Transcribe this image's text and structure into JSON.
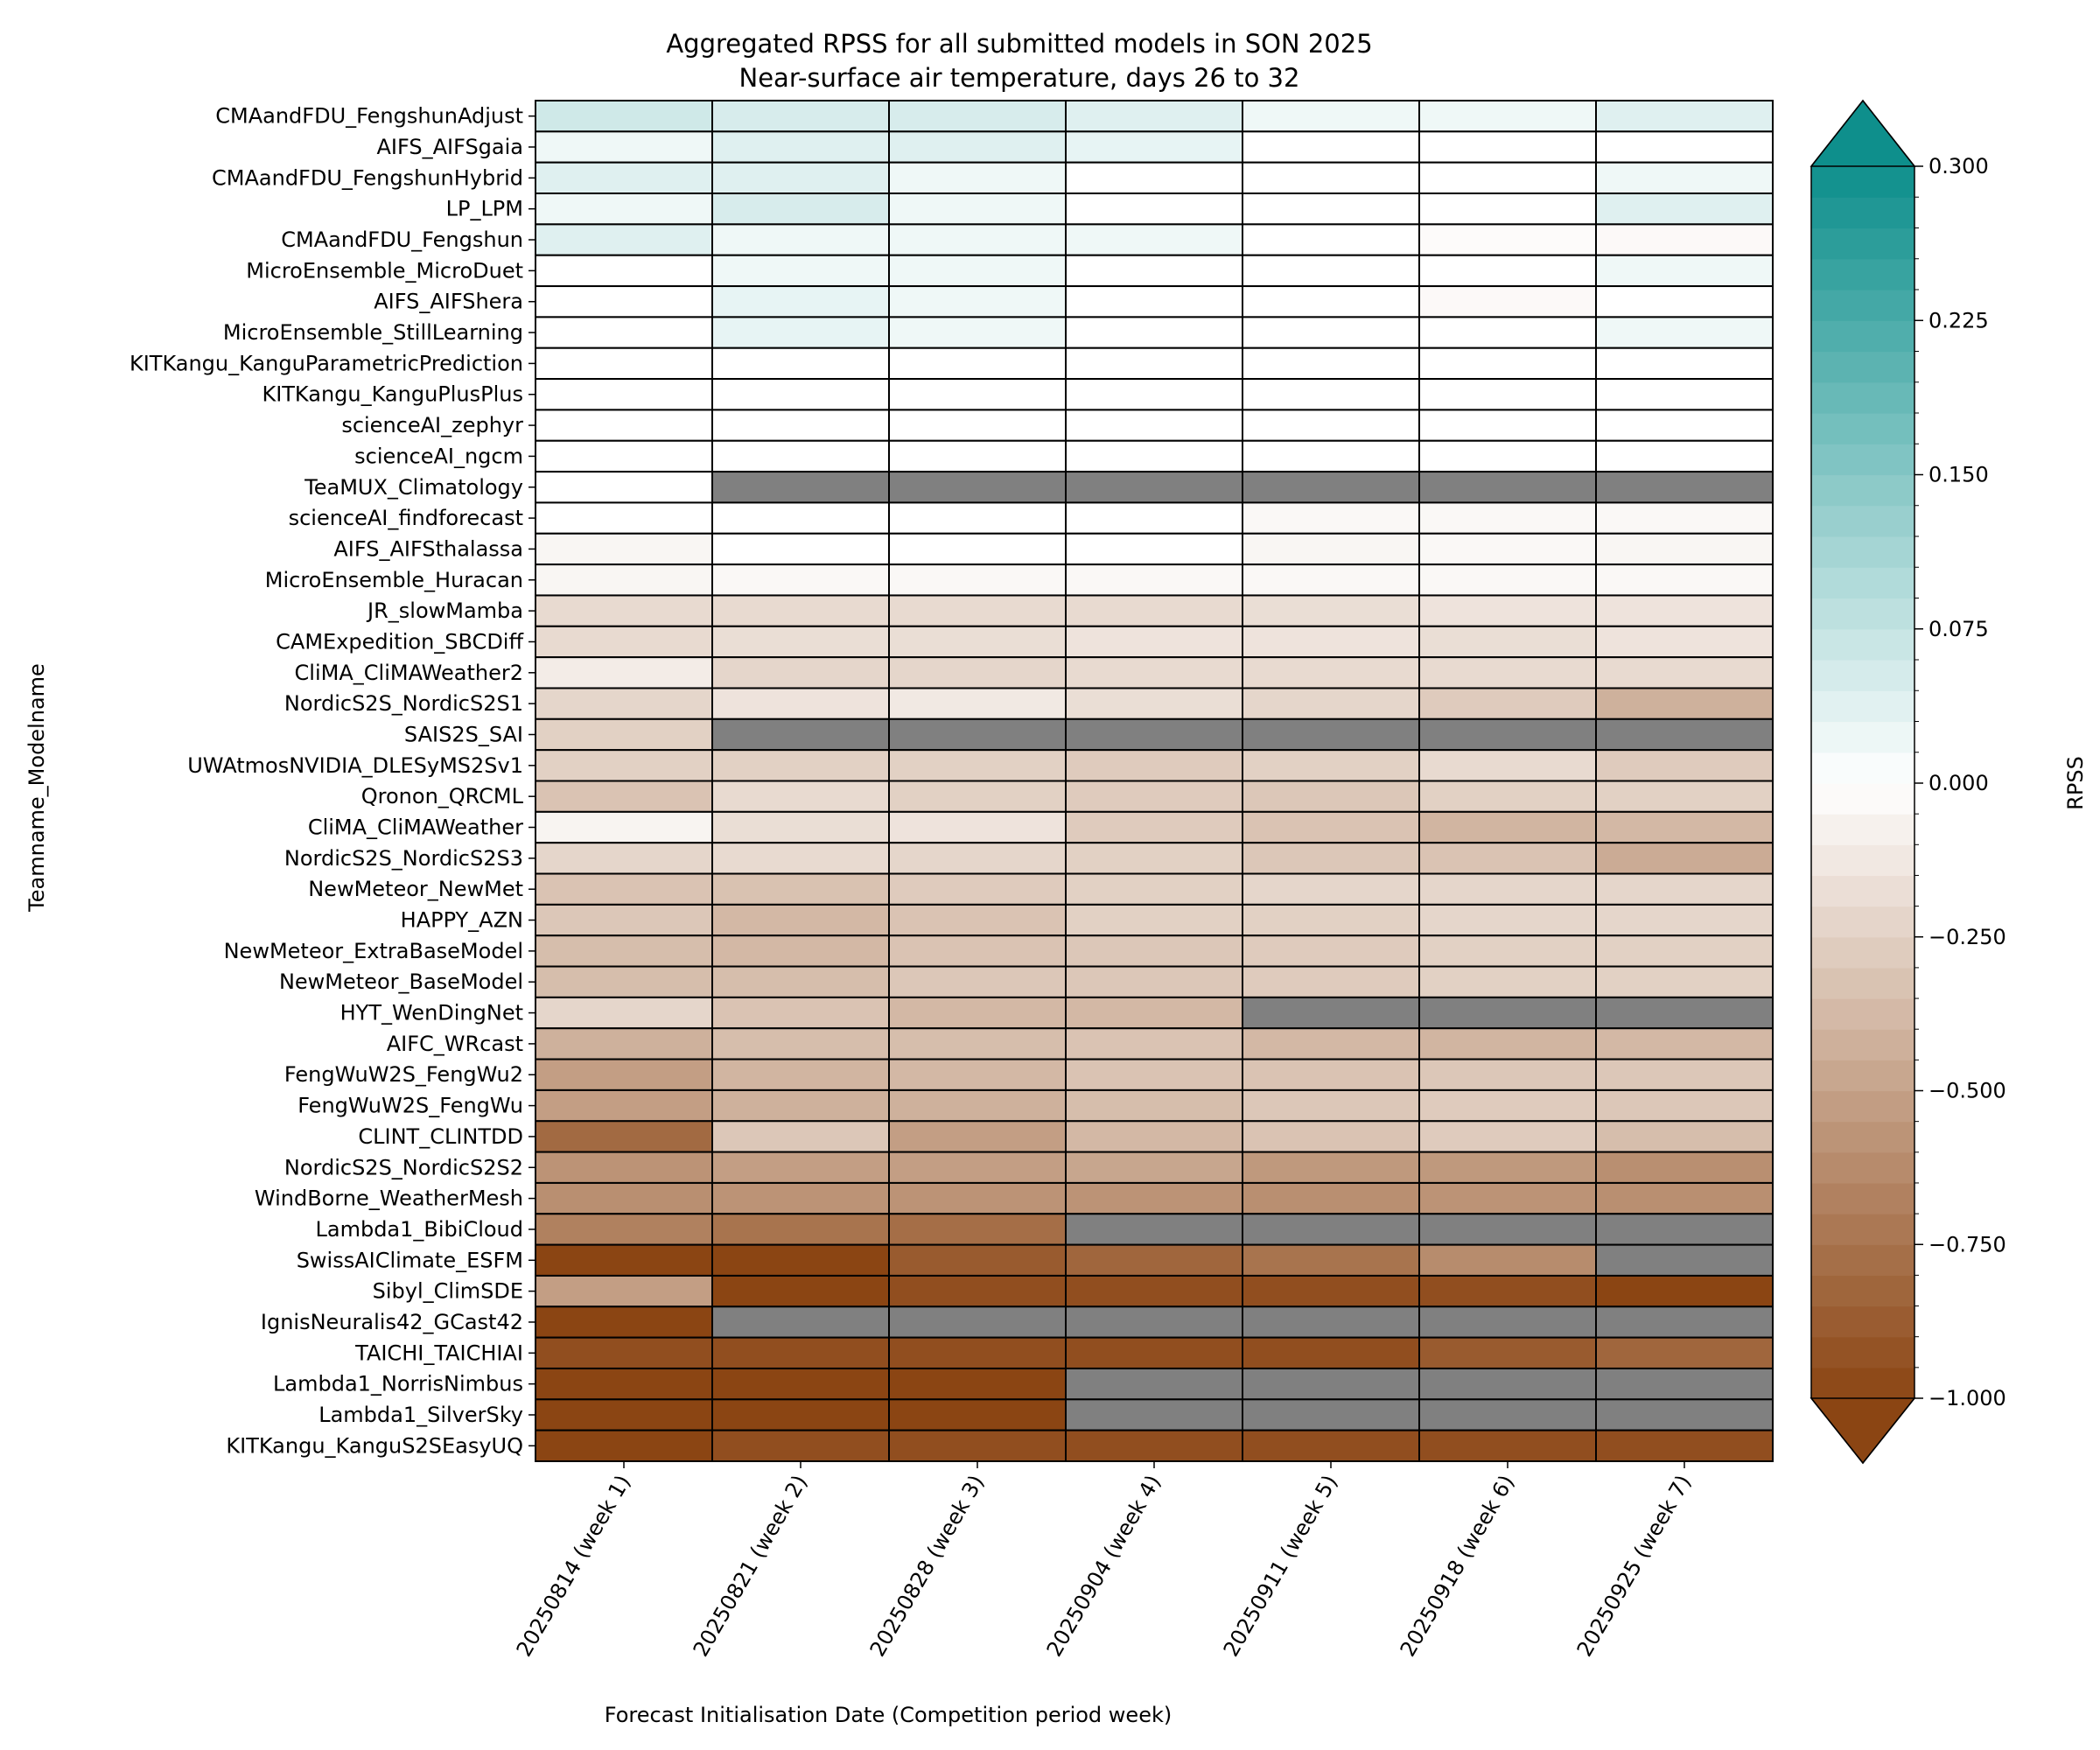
{
  "chart_data": {
    "type": "heatmap",
    "title": "Aggregated RPSS for all submitted models in SON 2025",
    "subtitle": "Near-surface air temperature, days 26 to 32",
    "xlabel": "Forecast Initialisation Date (Competition period week)",
    "ylabel": "Teamname_Modelname",
    "colorbar_label": "RPSS",
    "colorbar_ticks": [
      "0.300",
      "0.225",
      "0.150",
      "0.075",
      "0.000",
      "−0.250",
      "−0.500",
      "−0.750",
      "−1.000"
    ],
    "colorbar_tick_values": [
      0.3,
      0.225,
      0.15,
      0.075,
      0.0,
      -0.25,
      -0.5,
      -0.75,
      -1.0
    ],
    "vmin": -1.0,
    "vmax": 0.3,
    "colors": {
      "positive": "#0e8f8c",
      "zero": "#ffffff",
      "negative": "#8b4513",
      "missing": "#808080"
    },
    "categories": [
      "20250814 (week 1)",
      "20250821 (week 2)",
      "20250828 (week 3)",
      "20250904 (week 4)",
      "20250911 (week 5)",
      "20250918 (week 6)",
      "20250925 (week 7)"
    ],
    "rows": [
      {
        "name": "CMAandFDU_FengshunAdjust",
        "values": [
          0.06,
          0.05,
          0.05,
          0.04,
          0.02,
          0.02,
          0.04
        ]
      },
      {
        "name": "AIFS_AIFSgaia",
        "values": [
          0.02,
          0.04,
          0.04,
          0.03,
          0.0,
          0.0,
          0.0
        ]
      },
      {
        "name": "CMAandFDU_FengshunHybrid",
        "values": [
          0.04,
          0.04,
          0.02,
          0.0,
          0.0,
          0.0,
          0.02
        ]
      },
      {
        "name": "LP_LPM",
        "values": [
          0.02,
          0.05,
          0.02,
          0.0,
          0.0,
          0.0,
          0.04
        ]
      },
      {
        "name": "CMAandFDU_Fengshun",
        "values": [
          0.04,
          0.02,
          0.02,
          0.02,
          0.0,
          -0.02,
          -0.03
        ]
      },
      {
        "name": "MicroEnsemble_MicroDuet",
        "values": [
          0.0,
          0.02,
          0.02,
          0.0,
          0.0,
          0.0,
          0.02
        ]
      },
      {
        "name": "AIFS_AIFShera",
        "values": [
          0.0,
          0.03,
          0.02,
          0.0,
          0.0,
          -0.03,
          0.0
        ]
      },
      {
        "name": "MicroEnsemble_StillLearning",
        "values": [
          0.0,
          0.03,
          0.02,
          0.0,
          0.0,
          0.0,
          0.02
        ]
      },
      {
        "name": "KITKangu_KanguParametricPrediction",
        "values": [
          0.0,
          0.0,
          0.0,
          0.0,
          0.0,
          0.0,
          0.0
        ]
      },
      {
        "name": "KITKangu_KanguPlusPlus",
        "values": [
          0.0,
          0.0,
          0.0,
          0.0,
          0.0,
          0.0,
          0.0
        ]
      },
      {
        "name": "scienceAI_zephyr",
        "values": [
          0.0,
          0.0,
          0.0,
          0.0,
          0.0,
          0.0,
          0.0
        ]
      },
      {
        "name": "scienceAI_ngcm",
        "values": [
          0.0,
          0.0,
          0.0,
          0.0,
          0.0,
          0.0,
          0.0
        ]
      },
      {
        "name": "TeaMUX_Climatology",
        "values": [
          0.0,
          null,
          null,
          null,
          null,
          null,
          null
        ]
      },
      {
        "name": "scienceAI_findforecast",
        "values": [
          0.0,
          0.0,
          0.0,
          0.0,
          -0.04,
          -0.04,
          -0.04
        ]
      },
      {
        "name": "AIFS_AIFSthalassa",
        "values": [
          -0.05,
          0.0,
          0.0,
          0.0,
          -0.05,
          -0.04,
          -0.05
        ]
      },
      {
        "name": "MicroEnsemble_Huracan",
        "values": [
          -0.05,
          -0.04,
          -0.04,
          -0.04,
          -0.04,
          -0.04,
          -0.04
        ]
      },
      {
        "name": "JR_slowMamba",
        "values": [
          -0.2,
          -0.2,
          -0.2,
          -0.2,
          -0.18,
          -0.15,
          -0.15
        ]
      },
      {
        "name": "CAMExpedition_SBCDiff",
        "values": [
          -0.2,
          -0.18,
          -0.18,
          -0.15,
          -0.15,
          -0.18,
          -0.15
        ]
      },
      {
        "name": "CliMA_CliMAWeather2",
        "values": [
          -0.1,
          -0.22,
          -0.22,
          -0.2,
          -0.2,
          -0.2,
          -0.2
        ]
      },
      {
        "name": "NordicS2S_NordicS2S1",
        "values": [
          -0.22,
          -0.15,
          -0.12,
          -0.18,
          -0.22,
          -0.28,
          -0.42
        ]
      },
      {
        "name": "SAIS2S_SAI",
        "values": [
          -0.25,
          null,
          null,
          null,
          null,
          null,
          null
        ]
      },
      {
        "name": "UWAtmosNVIDIA_DLESyMS2Sv1",
        "values": [
          -0.25,
          -0.25,
          -0.25,
          -0.28,
          -0.25,
          -0.2,
          -0.28
        ]
      },
      {
        "name": "Qronon_QRCML",
        "values": [
          -0.32,
          -0.2,
          -0.25,
          -0.28,
          -0.3,
          -0.25,
          -0.25
        ]
      },
      {
        "name": "CliMA_CliMAWeather",
        "values": [
          -0.06,
          -0.18,
          -0.15,
          -0.28,
          -0.32,
          -0.4,
          -0.38
        ]
      },
      {
        "name": "NordicS2S_NordicS2S3",
        "values": [
          -0.22,
          -0.2,
          -0.22,
          -0.25,
          -0.3,
          -0.32,
          -0.45
        ]
      },
      {
        "name": "NewMeteor_NewMet",
        "values": [
          -0.32,
          -0.33,
          -0.28,
          -0.25,
          -0.22,
          -0.22,
          -0.22
        ]
      },
      {
        "name": "HAPPY_AZN",
        "values": [
          -0.3,
          -0.38,
          -0.32,
          -0.25,
          -0.25,
          -0.22,
          -0.22
        ]
      },
      {
        "name": "NewMeteor_ExtraBaseModel",
        "values": [
          -0.35,
          -0.38,
          -0.32,
          -0.3,
          -0.28,
          -0.25,
          -0.25
        ]
      },
      {
        "name": "NewMeteor_BaseModel",
        "values": [
          -0.35,
          -0.35,
          -0.3,
          -0.3,
          -0.28,
          -0.25,
          -0.25
        ]
      },
      {
        "name": "HYT_WenDingNet",
        "values": [
          -0.22,
          -0.32,
          -0.38,
          -0.38,
          null,
          null,
          null
        ]
      },
      {
        "name": "AIFC_WRcast",
        "values": [
          -0.42,
          -0.35,
          -0.35,
          -0.32,
          -0.38,
          -0.4,
          -0.38
        ]
      },
      {
        "name": "FengWuW2S_FengWu2",
        "values": [
          -0.52,
          -0.4,
          -0.38,
          -0.32,
          -0.32,
          -0.3,
          -0.3
        ]
      },
      {
        "name": "FengWuW2S_FengWu",
        "values": [
          -0.52,
          -0.42,
          -0.42,
          -0.35,
          -0.3,
          -0.28,
          -0.3
        ]
      },
      {
        "name": "CLINT_CLINTDD",
        "values": [
          -0.8,
          -0.3,
          -0.52,
          -0.38,
          -0.32,
          -0.28,
          -0.35
        ]
      },
      {
        "name": "NordicS2S_NordicS2S2",
        "values": [
          -0.58,
          -0.52,
          -0.52,
          -0.48,
          -0.55,
          -0.55,
          -0.6
        ]
      },
      {
        "name": "WindBorne_WeatherMesh",
        "values": [
          -0.6,
          -0.58,
          -0.58,
          -0.58,
          -0.6,
          -0.58,
          -0.6
        ]
      },
      {
        "name": "Lambda1_BibiCloud",
        "values": [
          -0.68,
          -0.75,
          -0.78,
          null,
          null,
          null,
          null
        ]
      },
      {
        "name": "SwissAIClimate_ESFM",
        "values": [
          -1.0,
          -1.0,
          -0.88,
          -0.82,
          -0.75,
          -0.62,
          null
        ]
      },
      {
        "name": "Sibyl_ClimSDE",
        "values": [
          -0.52,
          -1.0,
          -0.95,
          -0.95,
          -0.95,
          -0.95,
          -1.0
        ]
      },
      {
        "name": "IgnisNeuralis42_GCast42",
        "values": [
          -1.0,
          null,
          null,
          null,
          null,
          null,
          null
        ]
      },
      {
        "name": "TAICHI_TAICHIAI",
        "values": [
          -0.95,
          -0.95,
          -0.95,
          -0.95,
          -0.95,
          -0.88,
          -0.82
        ]
      },
      {
        "name": "Lambda1_NorrisNimbus",
        "values": [
          -1.0,
          -1.0,
          -1.0,
          null,
          null,
          null,
          null
        ]
      },
      {
        "name": "Lambda1_SilverSky",
        "values": [
          -1.0,
          -1.0,
          -1.0,
          null,
          null,
          null,
          null
        ]
      },
      {
        "name": "KITKangu_KanguS2SEasyUQ",
        "values": [
          -1.0,
          -0.95,
          -0.95,
          -0.95,
          -0.95,
          -0.95,
          -0.95
        ]
      }
    ]
  }
}
